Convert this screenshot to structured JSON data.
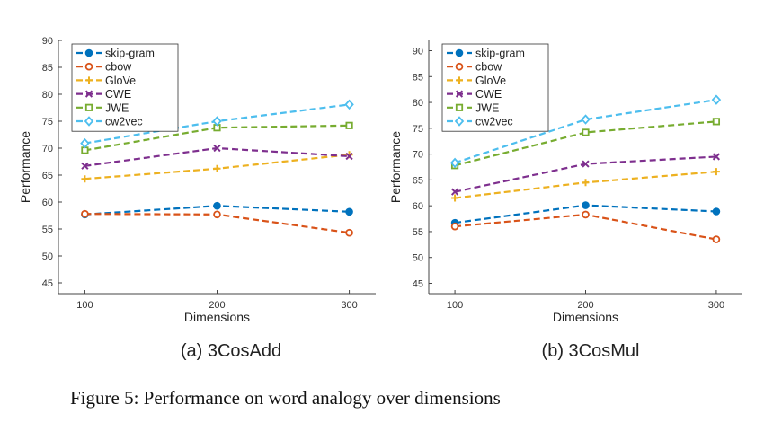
{
  "caption": "Figure 5: Performance on word analogy over dimensions",
  "colors": {
    "skip-gram": "#0072BD",
    "cbow": "#D95319",
    "GloVe": "#EDB120",
    "CWE": "#7E2F8E",
    "JWE": "#77AC30",
    "cw2vec": "#4DBEEE"
  },
  "chart_data": [
    {
      "type": "line",
      "subcaption": "(a) 3CosAdd",
      "xlabel": "Dimensions",
      "ylabel": "Performance",
      "x": [
        100,
        200,
        300
      ],
      "xticks": [
        100,
        200,
        300
      ],
      "ylim": [
        43,
        90
      ],
      "yticks": [
        45,
        50,
        55,
        60,
        65,
        70,
        75,
        80,
        85,
        90
      ],
      "grid": false,
      "legend_position": "top-left",
      "series": [
        {
          "name": "skip-gram",
          "marker": "circle",
          "values": [
            57.7,
            59.3,
            58.2
          ]
        },
        {
          "name": "cbow",
          "marker": "open-circle",
          "values": [
            57.8,
            57.7,
            54.3
          ]
        },
        {
          "name": "GloVe",
          "marker": "plus",
          "values": [
            64.3,
            66.2,
            68.8
          ]
        },
        {
          "name": "CWE",
          "marker": "cross",
          "values": [
            66.7,
            70.0,
            68.5
          ]
        },
        {
          "name": "JWE",
          "marker": "square",
          "values": [
            69.6,
            73.8,
            74.2
          ]
        },
        {
          "name": "cw2vec",
          "marker": "diamond",
          "values": [
            70.9,
            75.0,
            78.1
          ]
        }
      ]
    },
    {
      "type": "line",
      "subcaption": "(b) 3CosMul",
      "xlabel": "Dimensions",
      "ylabel": "Performance",
      "x": [
        100,
        200,
        300
      ],
      "xticks": [
        100,
        200,
        300
      ],
      "ylim": [
        43,
        92
      ],
      "yticks": [
        45,
        50,
        55,
        60,
        65,
        70,
        75,
        80,
        85,
        90
      ],
      "grid": false,
      "legend_position": "top-left",
      "series": [
        {
          "name": "skip-gram",
          "marker": "circle",
          "values": [
            56.7,
            60.1,
            58.9
          ]
        },
        {
          "name": "cbow",
          "marker": "open-circle",
          "values": [
            56.0,
            58.3,
            53.5
          ]
        },
        {
          "name": "GloVe",
          "marker": "plus",
          "values": [
            61.5,
            64.5,
            66.6
          ]
        },
        {
          "name": "CWE",
          "marker": "cross",
          "values": [
            62.7,
            68.1,
            69.5
          ]
        },
        {
          "name": "JWE",
          "marker": "square",
          "values": [
            67.8,
            74.2,
            76.3
          ]
        },
        {
          "name": "cw2vec",
          "marker": "diamond",
          "values": [
            68.3,
            76.7,
            80.5
          ]
        }
      ]
    }
  ]
}
